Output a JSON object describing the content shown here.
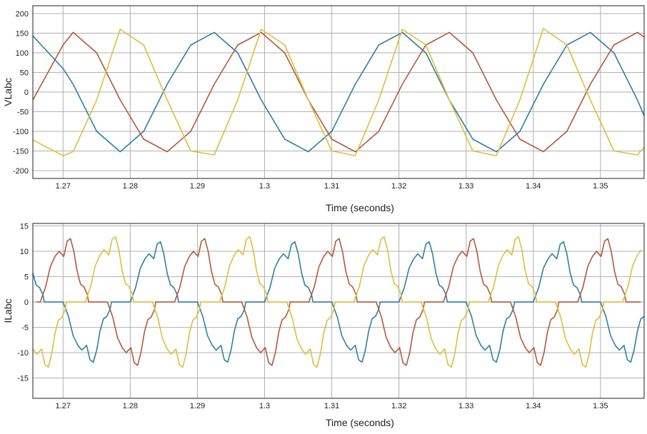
{
  "colors": {
    "phase_a": "#2e7fa3",
    "phase_b": "#b5583a",
    "phase_c": "#e0be3c",
    "grid": "#b0b0b0",
    "axes": "#222222"
  },
  "chart_data": [
    {
      "type": "line",
      "xlabel": "Time (seconds)",
      "ylabel": "VLabc",
      "xlim": [
        1.2655,
        1.3565
      ],
      "ylim": [
        -220,
        220
      ],
      "xticks": [
        1.27,
        1.28,
        1.29,
        1.3,
        1.31,
        1.32,
        1.33,
        1.34,
        1.35
      ],
      "xtick_labels": [
        "1.27",
        "1.28",
        "1.29",
        "1.3",
        "1.31",
        "1.32",
        "1.33",
        "1.34",
        "1.35"
      ],
      "yticks": [
        200,
        150,
        100,
        50,
        0,
        -50,
        -100,
        -150,
        -200
      ],
      "ytick_labels": [
        "200",
        "150",
        "100",
        "50",
        "0",
        "-50",
        "-100",
        "-150",
        "-200"
      ],
      "grid": true,
      "x": [
        1.2655,
        1.27,
        1.2715,
        1.275,
        1.2785,
        1.282,
        1.2855,
        1.289,
        1.2925,
        1.296,
        1.2995,
        1.303,
        1.3065,
        1.31,
        1.3135,
        1.317,
        1.3205,
        1.324,
        1.3275,
        1.331,
        1.3345,
        1.338,
        1.3415,
        1.345,
        1.3485,
        1.352,
        1.3555,
        1.3565
      ],
      "series": [
        {
          "color_key": "phase_a",
          "values": [
            143,
            60,
            20,
            -100,
            -152,
            -100,
            20,
            120,
            152,
            100,
            -20,
            -120,
            -152,
            -100,
            20,
            120,
            152,
            100,
            -20,
            -120,
            -152,
            -100,
            20,
            120,
            152,
            100,
            -20,
            -60
          ]
        },
        {
          "color_key": "phase_b",
          "values": [
            -20,
            120,
            152,
            100,
            -20,
            -120,
            -152,
            -100,
            20,
            120,
            152,
            100,
            -20,
            -120,
            -152,
            -100,
            20,
            120,
            152,
            100,
            -20,
            -120,
            -152,
            -100,
            20,
            120,
            152,
            140
          ]
        },
        {
          "color_key": "phase_c",
          "values": [
            -122,
            -162,
            -152,
            -20,
            160,
            120,
            -20,
            -150,
            -160,
            -20,
            160,
            120,
            -20,
            -150,
            -162,
            -20,
            160,
            120,
            -20,
            -150,
            -162,
            -20,
            162,
            120,
            -20,
            -150,
            -160,
            -140
          ]
        }
      ]
    },
    {
      "type": "line",
      "xlabel": "Time (seconds)",
      "ylabel": "ILabc",
      "xlim": [
        1.2655,
        1.3565
      ],
      "ylim": [
        -19,
        15.5
      ],
      "xticks": [
        1.27,
        1.28,
        1.29,
        1.3,
        1.31,
        1.32,
        1.33,
        1.34,
        1.35
      ],
      "xtick_labels": [
        "1.27",
        "1.28",
        "1.29",
        "1.3",
        "1.31",
        "1.32",
        "1.33",
        "1.34",
        "1.35"
      ],
      "yticks": [
        15,
        10,
        5,
        0,
        -5,
        -10,
        -15
      ],
      "ytick_labels": [
        "15",
        "10",
        "5",
        "0",
        "-5",
        "-10",
        "-15"
      ],
      "grid": true,
      "period": 0.02,
      "phase_offsets": [
        0.0,
        0.0066,
        0.0133
      ],
      "pulse_shape": {
        "x_offset": [
          0,
          0.0008,
          0.0015,
          0.0022,
          0.0028,
          0.0035,
          0.004,
          0.0045,
          0.005,
          0.0055,
          0.006,
          0.0065,
          0.007,
          0.0072,
          0.0075,
          0.0082,
          0.0088,
          0.0094,
          0.01,
          0.0108,
          0.0115,
          0.0122,
          0.0128,
          0.0135,
          0.014,
          0.0145,
          0.015,
          0.0155,
          0.016,
          0.0165,
          0.017,
          0.0172,
          0.0175,
          0.0182,
          0.0188,
          0.0194,
          0.02
        ],
        "values": [
          0,
          3,
          7,
          9,
          10,
          9,
          12,
          12.5,
          10,
          6,
          3.5,
          3,
          1.5,
          0,
          0,
          0,
          0,
          0,
          0,
          -3,
          -7,
          -9,
          -10,
          -9,
          -12,
          -12.5,
          -10,
          -6,
          -3.5,
          -3,
          -1.5,
          0,
          0,
          0,
          0,
          0,
          0
        ]
      },
      "amplitudes": [
        0.95,
        1.0,
        1.03
      ],
      "series": [
        {
          "color_key": "phase_a"
        },
        {
          "color_key": "phase_b"
        },
        {
          "color_key": "phase_c"
        }
      ]
    }
  ]
}
